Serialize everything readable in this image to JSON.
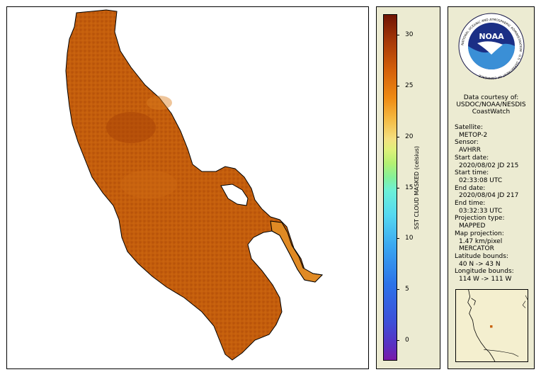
{
  "map": {
    "description_colors": {
      "water_dominant": "#c25a0c",
      "outline": "#000000",
      "background": "#ffffff"
    }
  },
  "colorbar": {
    "title": "SST CLOUD MASKED (celsius)",
    "ticks": [
      "30",
      "25",
      "20",
      "15",
      "10",
      "5",
      "0"
    ],
    "range": [
      -2,
      32
    ]
  },
  "logo": {
    "text": "NOAA",
    "ring_text": "NATIONAL OCEANIC AND ATMOSPHERIC ADMINISTRATION · U.S. DEPARTMENT OF COMMERCE"
  },
  "courtesy": {
    "line1": "Data courtesy of:",
    "line2": "USDOC/NOAA/NESDIS",
    "line3": "CoastWatch"
  },
  "metadata": [
    {
      "label": "Satellite:",
      "value": "METOP-2"
    },
    {
      "label": "Sensor:",
      "value": "AVHRR"
    },
    {
      "label": "Start date:",
      "value": "2020/08/02 JD 215"
    },
    {
      "label": "Start time:",
      "value": "02:33:08 UTC"
    },
    {
      "label": "End date:",
      "value": "2020/08/04 JD 217"
    },
    {
      "label": "End time:",
      "value": "03:32:33 UTC"
    },
    {
      "label": "Projection type:",
      "value": "MAPPED"
    },
    {
      "label": "Map projection:",
      "value": "1.47 km/pixel"
    },
    {
      "label": "",
      "value": "MERCATOR"
    },
    {
      "label": "Latitude bounds:",
      "value": "40 N -> 43 N"
    },
    {
      "label": "Longitude bounds:",
      "value": "114 W -> 111 W"
    }
  ]
}
